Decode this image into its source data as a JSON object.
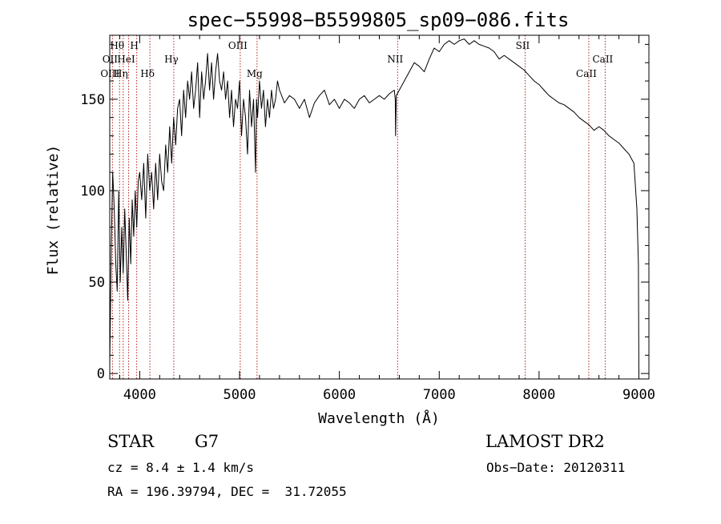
{
  "chart_data": {
    "type": "line",
    "title": "spec−55998−B5599805_sp09−086.fits",
    "xlabel": "Wavelength (Å)",
    "ylabel": "Flux (relative)",
    "xlim": [
      3700,
      9100
    ],
    "ylim": [
      -3,
      185
    ],
    "x_ticks": [
      {
        "value": 4000,
        "label": "4000"
      },
      {
        "value": 5000,
        "label": "5000"
      },
      {
        "value": 6000,
        "label": "6000"
      },
      {
        "value": 7000,
        "label": "7000"
      },
      {
        "value": 8000,
        "label": "8000"
      },
      {
        "value": 9000,
        "label": "9000"
      }
    ],
    "y_ticks": [
      {
        "value": 0,
        "label": "0"
      },
      {
        "value": 50,
        "label": "50"
      },
      {
        "value": 100,
        "label": "100"
      },
      {
        "value": 150,
        "label": "150"
      }
    ],
    "grid": false,
    "line_color": "#000000",
    "marker_color": "#b22222",
    "series": [
      {
        "x": [
          3700,
          3715,
          3730,
          3745,
          3760,
          3775,
          3790,
          3805,
          3820,
          3835,
          3850,
          3865,
          3880,
          3895,
          3910,
          3925,
          3940,
          3955,
          3970,
          3985,
          4000,
          4020,
          4040,
          4060,
          4080,
          4100,
          4120,
          4140,
          4160,
          4180,
          4200,
          4220,
          4240,
          4260,
          4280,
          4300,
          4320,
          4340,
          4360,
          4380,
          4400,
          4420,
          4440,
          4460,
          4480,
          4500,
          4520,
          4540,
          4560,
          4580,
          4600,
          4620,
          4640,
          4660,
          4680,
          4700,
          4720,
          4740,
          4760,
          4780,
          4800,
          4820,
          4840,
          4860,
          4880,
          4900,
          4920,
          4940,
          4960,
          4980,
          5000,
          5020,
          5040,
          5060,
          5080,
          5100,
          5120,
          5140,
          5160,
          5170,
          5180,
          5200,
          5220,
          5240,
          5260,
          5280,
          5300,
          5320,
          5340,
          5360,
          5380,
          5400,
          5450,
          5500,
          5550,
          5600,
          5650,
          5700,
          5750,
          5800,
          5850,
          5900,
          5950,
          6000,
          6050,
          6100,
          6150,
          6200,
          6250,
          6300,
          6350,
          6400,
          6450,
          6500,
          6550,
          6560,
          6563,
          6570,
          6600,
          6650,
          6700,
          6750,
          6800,
          6850,
          6900,
          6950,
          7000,
          7050,
          7100,
          7150,
          7200,
          7250,
          7300,
          7350,
          7400,
          7450,
          7500,
          7550,
          7600,
          7650,
          7700,
          7750,
          7800,
          7850,
          7900,
          7950,
          8000,
          8050,
          8100,
          8150,
          8200,
          8250,
          8300,
          8350,
          8400,
          8450,
          8500,
          8550,
          8600,
          8650,
          8700,
          8750,
          8800,
          8850,
          8900,
          8950,
          8980,
          8995,
          9000
        ],
        "y": [
          5,
          70,
          110,
          90,
          60,
          45,
          100,
          50,
          80,
          55,
          90,
          65,
          40,
          85,
          60,
          95,
          75,
          100,
          80,
          105,
          110,
          95,
          115,
          85,
          120,
          100,
          110,
          90,
          115,
          95,
          120,
          105,
          100,
          125,
          110,
          135,
          115,
          140,
          125,
          145,
          150,
          130,
          155,
          140,
          160,
          150,
          165,
          145,
          155,
          170,
          140,
          165,
          150,
          160,
          175,
          155,
          170,
          150,
          165,
          175,
          160,
          155,
          165,
          150,
          160,
          140,
          155,
          135,
          150,
          145,
          160,
          130,
          150,
          140,
          120,
          155,
          135,
          150,
          110,
          150,
          140,
          160,
          145,
          155,
          135,
          150,
          140,
          155,
          145,
          150,
          160,
          155,
          148,
          152,
          150,
          145,
          150,
          140,
          148,
          152,
          155,
          147,
          150,
          145,
          150,
          148,
          145,
          150,
          152,
          148,
          150,
          152,
          150,
          153,
          155,
          150,
          130,
          152,
          155,
          160,
          165,
          170,
          168,
          165,
          172,
          178,
          176,
          180,
          182,
          180,
          182,
          183,
          180,
          182,
          180,
          179,
          178,
          176,
          172,
          174,
          172,
          170,
          168,
          166,
          163,
          160,
          158,
          155,
          152,
          150,
          148,
          147,
          145,
          143,
          140,
          138,
          136,
          133,
          135,
          133,
          130,
          128,
          126,
          123,
          120,
          115,
          90,
          60,
          0
        ]
      }
    ],
    "line_markers": [
      {
        "label": "Hθ",
        "x": 3798,
        "row": 1
      },
      {
        "label": "H",
        "x": 3970,
        "row": 1
      },
      {
        "label": "OIII",
        "x": 5007,
        "row": 1
      },
      {
        "label": "SII",
        "x": 7860,
        "row": 1
      },
      {
        "label": "OII",
        "x": 3727,
        "row": 2
      },
      {
        "label": "HeI",
        "x": 3889,
        "row": 2
      },
      {
        "label": "Hγ",
        "x": 4341,
        "row": 2
      },
      {
        "label": "NII",
        "x": 6583,
        "row": 2
      },
      {
        "label": "CaII",
        "x": 8662,
        "row": 2
      },
      {
        "label": "OIII",
        "x": 3727,
        "row": 3
      },
      {
        "label": "Hη",
        "x": 3835,
        "row": 3
      },
      {
        "label": "Hδ",
        "x": 4102,
        "row": 3
      },
      {
        "label": "Mg",
        "x": 5175,
        "row": 3
      },
      {
        "label": "CaII",
        "x": 8498,
        "row": 3
      }
    ],
    "marker_lines": [
      3727,
      3798,
      3835,
      3889,
      3970,
      4102,
      4341,
      5007,
      5175,
      6583,
      7860,
      8498,
      8662
    ]
  },
  "info": {
    "object_class": "STAR",
    "subclass": "G7",
    "survey": "LAMOST DR2",
    "cz": "cz = 8.4 ± 1.4 km/s",
    "obs_date": "Obs−Date: 20120311",
    "coords": "RA = 196.39794, DEC =  31.72055"
  }
}
